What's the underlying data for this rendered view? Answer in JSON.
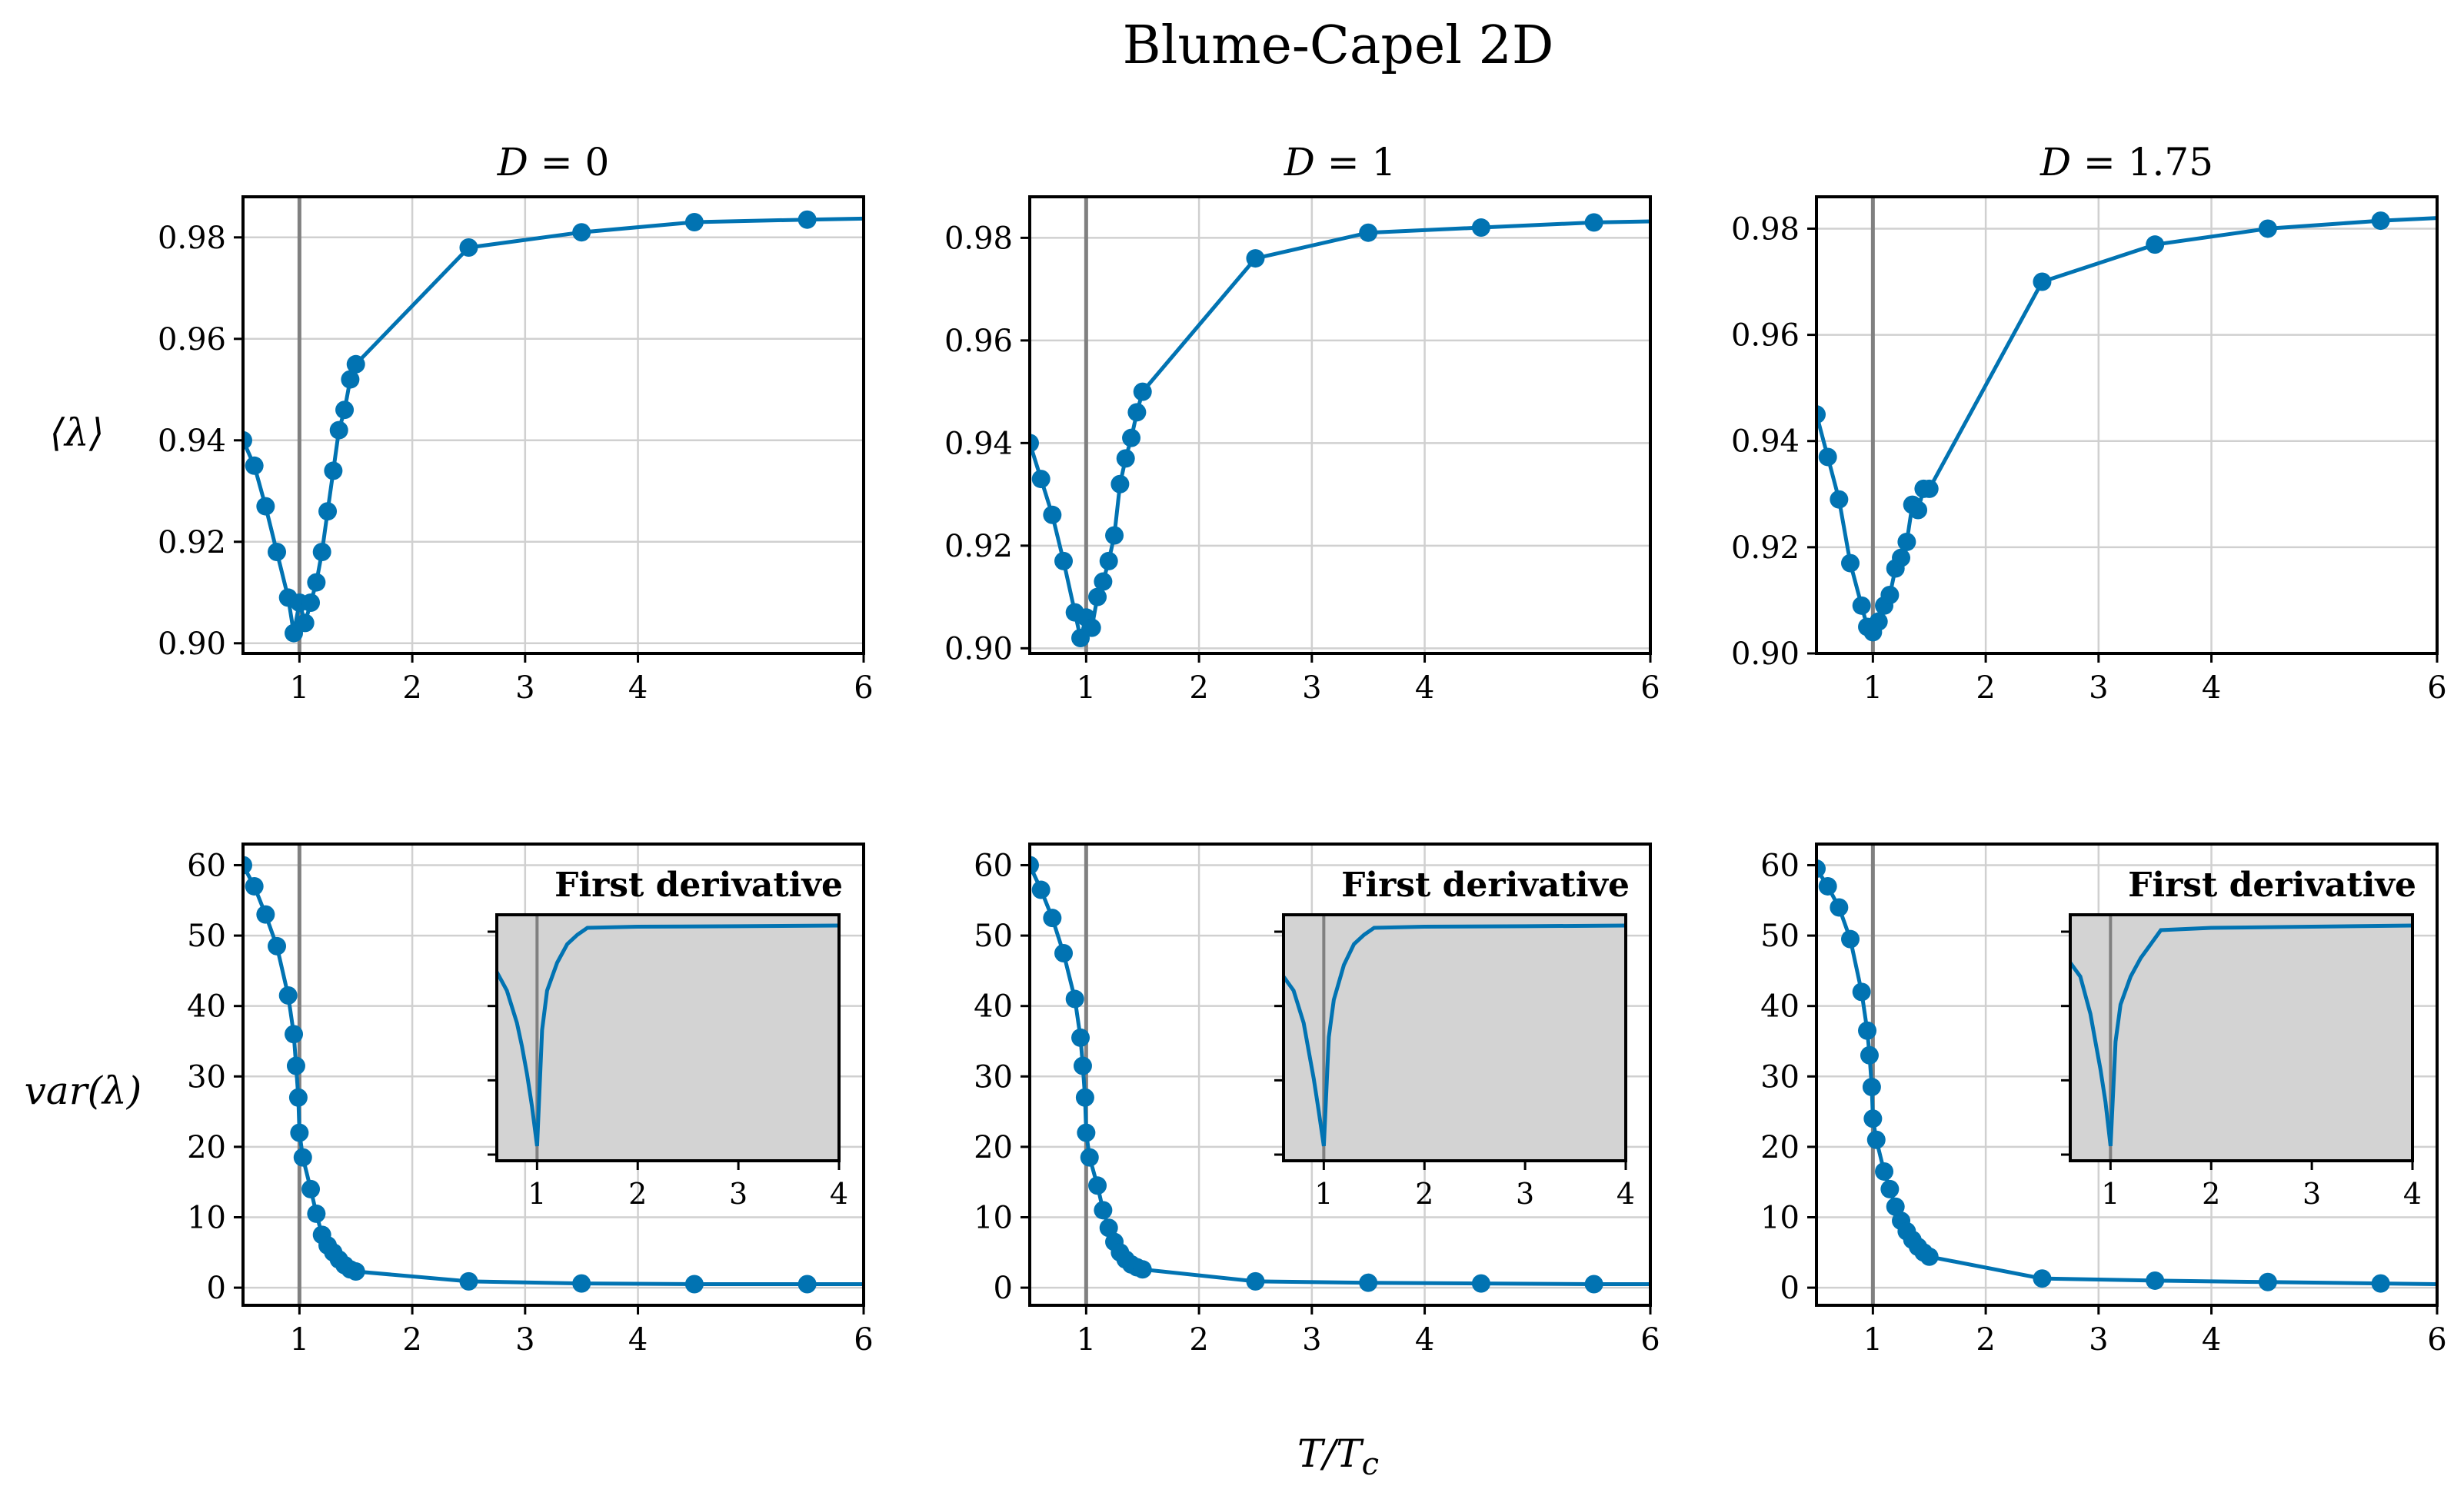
{
  "figure": {
    "title": "Blume-Capel 2D",
    "xlabel": "T/T_c",
    "row_ylabels": [
      "⟨λ⟩",
      "var(λ)"
    ],
    "line_color": "#0173B2",
    "grid_color": "#d0d0d0",
    "vline_color": "#808080",
    "inset_bg": "#d3d3d3"
  },
  "chart_data": [
    {
      "type": "line",
      "title": "D = 0",
      "row": 0,
      "col": 0,
      "xlabel": "",
      "ylabel": "⟨λ⟩",
      "xlim": [
        0.5,
        6
      ],
      "ylim": [
        0.898,
        0.988
      ],
      "xticks": [
        1,
        2,
        3,
        4,
        6
      ],
      "yticks": [
        0.9,
        0.92,
        0.94,
        0.96,
        0.98
      ],
      "ytick_labels": [
        "0.90",
        "0.92",
        "0.94",
        "0.96",
        "0.98"
      ],
      "grid": true,
      "vline": 1,
      "x": [
        0.5,
        0.6,
        0.7,
        0.8,
        0.9,
        0.95,
        1.0,
        1.05,
        1.1,
        1.15,
        1.2,
        1.25,
        1.3,
        1.35,
        1.4,
        1.45,
        1.5,
        2.5,
        3.5,
        4.5,
        5.5,
        6.0
      ],
      "y": [
        0.94,
        0.935,
        0.927,
        0.918,
        0.909,
        0.902,
        0.908,
        0.904,
        0.908,
        0.912,
        0.918,
        0.926,
        0.934,
        0.942,
        0.946,
        0.952,
        0.955,
        0.978,
        0.981,
        0.983,
        0.9835,
        0.9837
      ],
      "markers_n": 21
    },
    {
      "type": "line",
      "title": "D = 1",
      "row": 0,
      "col": 1,
      "xlabel": "",
      "ylabel": "",
      "xlim": [
        0.5,
        6
      ],
      "ylim": [
        0.899,
        0.988
      ],
      "xticks": [
        1,
        2,
        3,
        4,
        6
      ],
      "yticks": [
        0.9,
        0.92,
        0.94,
        0.96,
        0.98
      ],
      "ytick_labels": [
        "0.90",
        "0.92",
        "0.94",
        "0.96",
        "0.98"
      ],
      "grid": true,
      "vline": 1,
      "x": [
        0.5,
        0.6,
        0.7,
        0.8,
        0.9,
        0.95,
        1.0,
        1.05,
        1.1,
        1.15,
        1.2,
        1.25,
        1.3,
        1.35,
        1.4,
        1.45,
        1.5,
        2.5,
        3.5,
        4.5,
        5.5,
        6.0
      ],
      "y": [
        0.94,
        0.933,
        0.926,
        0.917,
        0.907,
        0.902,
        0.906,
        0.904,
        0.91,
        0.913,
        0.917,
        0.922,
        0.932,
        0.937,
        0.941,
        0.946,
        0.95,
        0.976,
        0.981,
        0.982,
        0.983,
        0.9832
      ],
      "markers_n": 21
    },
    {
      "type": "line",
      "title": "D = 1.75",
      "row": 0,
      "col": 2,
      "xlabel": "",
      "ylabel": "",
      "xlim": [
        0.5,
        6
      ],
      "ylim": [
        0.9,
        0.986
      ],
      "xticks": [
        1,
        2,
        3,
        4,
        6
      ],
      "yticks": [
        0.9,
        0.92,
        0.94,
        0.96,
        0.98
      ],
      "ytick_labels": [
        "0.90",
        "0.92",
        "0.94",
        "0.96",
        "0.98"
      ],
      "grid": true,
      "vline": 1,
      "x": [
        0.5,
        0.6,
        0.7,
        0.8,
        0.9,
        0.95,
        1.0,
        1.05,
        1.1,
        1.15,
        1.2,
        1.25,
        1.3,
        1.35,
        1.4,
        1.45,
        1.5,
        2.5,
        3.5,
        4.5,
        5.5,
        6.0
      ],
      "y": [
        0.945,
        0.937,
        0.929,
        0.917,
        0.909,
        0.905,
        0.904,
        0.906,
        0.909,
        0.911,
        0.916,
        0.918,
        0.921,
        0.928,
        0.927,
        0.931,
        0.931,
        0.97,
        0.977,
        0.98,
        0.9815,
        0.982
      ],
      "markers_n": 21
    },
    {
      "type": "line",
      "title": "",
      "row": 1,
      "col": 0,
      "xlabel": "T/T_c",
      "ylabel": "var(λ)",
      "xlim": [
        0.5,
        6
      ],
      "ylim": [
        -2.5,
        63
      ],
      "xticks": [
        1,
        2,
        3,
        4,
        6
      ],
      "yticks": [
        0,
        10,
        20,
        30,
        40,
        50,
        60
      ],
      "ytick_labels": [
        "0",
        "10",
        "20",
        "30",
        "40",
        "50",
        "60"
      ],
      "grid": true,
      "vline": 1,
      "x": [
        0.5,
        0.6,
        0.7,
        0.8,
        0.9,
        0.95,
        0.97,
        0.99,
        1.0,
        1.03,
        1.1,
        1.15,
        1.2,
        1.25,
        1.3,
        1.35,
        1.4,
        1.45,
        1.5,
        2.5,
        3.5,
        4.5,
        5.5,
        6.0
      ],
      "y": [
        60,
        57,
        53,
        48.5,
        41.5,
        36,
        31.5,
        27,
        22,
        18.5,
        14,
        10.5,
        7.5,
        6,
        5,
        4,
        3.2,
        2.6,
        2.3,
        0.9,
        0.6,
        0.5,
        0.5,
        0.5
      ],
      "markers_n": 23,
      "inset": {
        "title": "First derivative",
        "xlim": [
          0.6,
          4
        ],
        "ylim": [
          0,
          1
        ],
        "xticks": [
          1,
          2,
          3,
          4
        ],
        "yticks_n": 4,
        "vline": 1,
        "x": [
          0.6,
          0.7,
          0.8,
          0.85,
          0.9,
          0.95,
          1.0,
          1.05,
          1.1,
          1.2,
          1.3,
          1.4,
          1.5,
          2.0,
          3.0,
          4.0
        ],
        "y": [
          0.8,
          0.72,
          0.58,
          0.48,
          0.36,
          0.22,
          0.05,
          0.55,
          0.72,
          0.84,
          0.92,
          0.96,
          0.99,
          0.995,
          0.997,
          1.0
        ]
      }
    },
    {
      "type": "line",
      "title": "",
      "row": 1,
      "col": 1,
      "xlabel": "T/T_c",
      "ylabel": "",
      "xlim": [
        0.5,
        6
      ],
      "ylim": [
        -2.5,
        63
      ],
      "xticks": [
        1,
        2,
        3,
        4,
        6
      ],
      "yticks": [
        0,
        10,
        20,
        30,
        40,
        50,
        60
      ],
      "ytick_labels": [
        "0",
        "10",
        "20",
        "30",
        "40",
        "50",
        "60"
      ],
      "grid": true,
      "vline": 1,
      "x": [
        0.5,
        0.6,
        0.7,
        0.8,
        0.9,
        0.95,
        0.97,
        0.99,
        1.0,
        1.03,
        1.1,
        1.15,
        1.2,
        1.25,
        1.3,
        1.35,
        1.4,
        1.45,
        1.5,
        2.5,
        3.5,
        4.5,
        5.5,
        6.0
      ],
      "y": [
        60,
        56.5,
        52.5,
        47.5,
        41,
        35.5,
        31.5,
        27,
        22,
        18.5,
        14.5,
        11,
        8.5,
        6.5,
        5,
        4,
        3.3,
        2.9,
        2.6,
        0.9,
        0.7,
        0.6,
        0.5,
        0.5
      ],
      "markers_n": 23,
      "inset": {
        "title": "First derivative",
        "xlim": [
          0.6,
          4
        ],
        "ylim": [
          0,
          1
        ],
        "xticks": [
          1,
          2,
          3,
          4
        ],
        "yticks_n": 4,
        "vline": 1,
        "x": [
          0.6,
          0.7,
          0.8,
          0.85,
          0.9,
          0.95,
          1.0,
          1.05,
          1.1,
          1.2,
          1.3,
          1.4,
          1.5,
          2.0,
          3.0,
          4.0
        ],
        "y": [
          0.78,
          0.72,
          0.58,
          0.46,
          0.34,
          0.2,
          0.05,
          0.52,
          0.68,
          0.83,
          0.92,
          0.96,
          0.99,
          0.995,
          0.997,
          1.0
        ]
      }
    },
    {
      "type": "line",
      "title": "",
      "row": 1,
      "col": 2,
      "xlabel": "T/T_c",
      "ylabel": "",
      "xlim": [
        0.5,
        6
      ],
      "ylim": [
        -2.5,
        63
      ],
      "xticks": [
        1,
        2,
        3,
        4,
        6
      ],
      "yticks": [
        0,
        10,
        20,
        30,
        40,
        50,
        60
      ],
      "ytick_labels": [
        "0",
        "10",
        "20",
        "30",
        "40",
        "50",
        "60"
      ],
      "grid": true,
      "vline": 1,
      "x": [
        0.5,
        0.6,
        0.7,
        0.8,
        0.9,
        0.95,
        0.97,
        0.99,
        1.0,
        1.03,
        1.1,
        1.15,
        1.2,
        1.25,
        1.3,
        1.35,
        1.4,
        1.45,
        1.5,
        2.5,
        3.5,
        4.5,
        5.5,
        6.0
      ],
      "y": [
        59.5,
        57,
        54,
        49.5,
        42,
        36.5,
        33,
        28.5,
        24,
        21,
        16.5,
        14,
        11.5,
        9.5,
        8,
        6.8,
        5.8,
        5,
        4.4,
        1.3,
        1.0,
        0.8,
        0.6,
        0.5
      ],
      "markers_n": 23,
      "inset": {
        "title": "First derivative",
        "xlim": [
          0.6,
          4
        ],
        "ylim": [
          0,
          1
        ],
        "xticks": [
          1,
          2,
          3,
          4
        ],
        "yticks_n": 4,
        "vline": 1,
        "x": [
          0.6,
          0.7,
          0.8,
          0.85,
          0.9,
          0.95,
          1.0,
          1.05,
          1.1,
          1.2,
          1.3,
          1.4,
          1.5,
          2.0,
          3.0,
          4.0
        ],
        "y": [
          0.84,
          0.78,
          0.62,
          0.5,
          0.38,
          0.24,
          0.05,
          0.5,
          0.66,
          0.78,
          0.86,
          0.92,
          0.98,
          0.99,
          0.995,
          1.0
        ]
      }
    }
  ]
}
